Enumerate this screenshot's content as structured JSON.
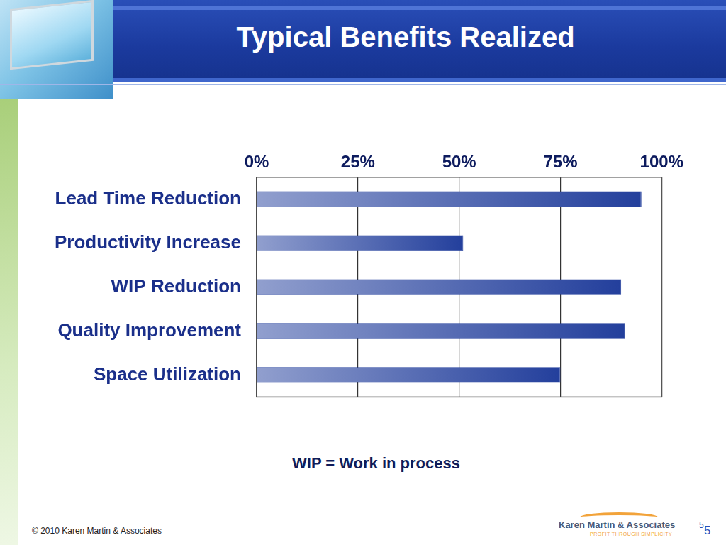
{
  "slide": {
    "title": "Typical Benefits Realized",
    "note": "WIP = Work in process",
    "footer": "© 2010 Karen Martin & Associates",
    "logo": {
      "name": "Karen Martin & Associates",
      "tagline": "PROFIT THROUGH SIMPLICITY"
    },
    "page_numbers": [
      5,
      5
    ]
  },
  "chart_data": {
    "type": "bar",
    "orientation": "horizontal",
    "categories": [
      "Lead Time Reduction",
      "Productivity Increase",
      "WIP Reduction",
      "Quality Improvement",
      "Space Utilization"
    ],
    "values": [
      95,
      51,
      90,
      91,
      75
    ],
    "color": "#233f9c",
    "xlim": [
      0,
      100
    ],
    "xticks": [
      {
        "value": 0,
        "label": "0%"
      },
      {
        "value": 25,
        "label": "25%"
      },
      {
        "value": 50,
        "label": "50%"
      },
      {
        "value": 75,
        "label": "75%"
      },
      {
        "value": 100,
        "label": "100%"
      }
    ],
    "grid": true
  }
}
